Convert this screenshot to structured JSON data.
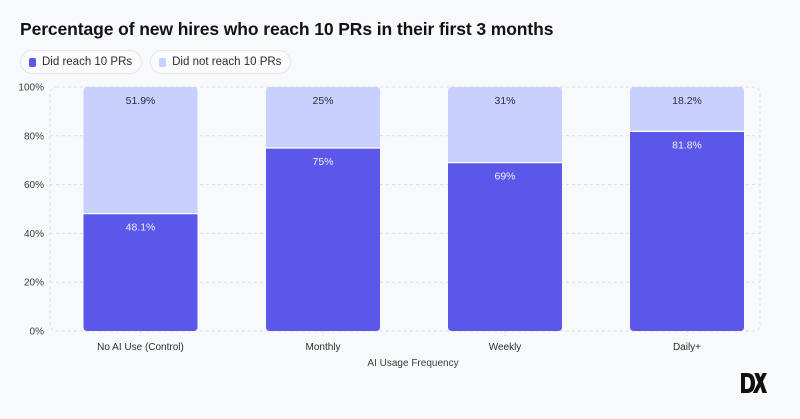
{
  "colors": {
    "reached": "#5b57e9",
    "not_reached": "#c8d0fd",
    "label_on_dark": "#eef0ff",
    "label_on_light": "#2b2d3a",
    "grid": "#d9dce3"
  },
  "logo": {
    "text": "DX",
    "icon": "dx-logo-icon"
  },
  "chart_data": {
    "type": "bar",
    "stacked": true,
    "title": "Percentage of new hires who reach 10 PRs in their first 3 months",
    "xlabel": "AI Usage Frequency",
    "ylabel": "",
    "ylim": [
      0,
      100
    ],
    "yticks": [
      0,
      20,
      40,
      60,
      80,
      100
    ],
    "ytick_labels": [
      "0%",
      "20%",
      "40%",
      "60%",
      "80%",
      "100%"
    ],
    "grid": true,
    "legend_position": "top-left",
    "categories": [
      "No AI Use (Control)",
      "Monthly",
      "Weekly",
      "Daily+"
    ],
    "series": [
      {
        "name": "Did reach 10 PRs",
        "color": "#5b57e9",
        "values": [
          48.1,
          75,
          69,
          81.8
        ],
        "labels": [
          "48.1%",
          "75%",
          "69%",
          "81.8%"
        ]
      },
      {
        "name": "Did not reach 10 PRs",
        "color": "#c8d0fd",
        "values": [
          51.9,
          25,
          31,
          18.2
        ],
        "labels": [
          "51.9%",
          "25%",
          "31%",
          "18.2%"
        ]
      }
    ]
  }
}
